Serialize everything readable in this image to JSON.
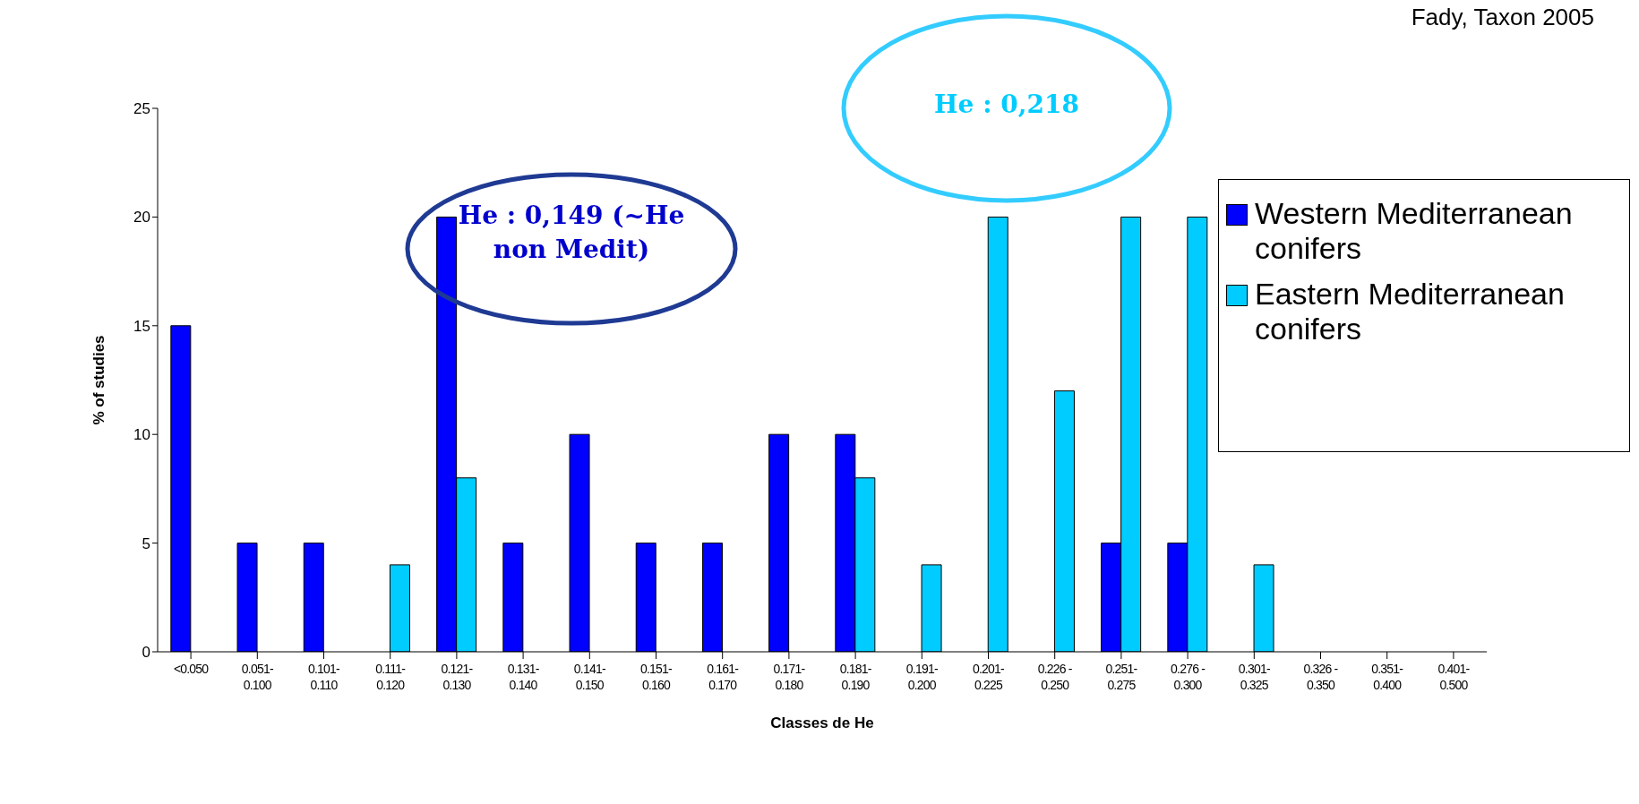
{
  "chart_data": {
    "type": "bar",
    "xlabel": "Classes de He",
    "ylabel": "% of studies",
    "categories": [
      "<0.050",
      "0.051- 0.100",
      "0.101- 0.110",
      "0.111- 0.120",
      "0.121- 0.130",
      "0.131- 0.140",
      "0.141- 0.150",
      "0.151- 0.160",
      "0.161- 0.170",
      "0.171- 0.180",
      "0.181- 0.190",
      "0.191- 0.200",
      "0.201- 0.225",
      "0.226 - 0.250",
      "0.251- 0.275",
      "0.276 - 0.300",
      "0.301- 0.325",
      "0.326 - 0.350",
      "0.351- 0.400",
      "0.401- 0.500"
    ],
    "series": [
      {
        "name": "Western Mediterranean conifers",
        "color": "#0000ff",
        "values": [
          15,
          5,
          5,
          0,
          20,
          5,
          10,
          5,
          5,
          10,
          10,
          0,
          0,
          0,
          5,
          5,
          0,
          0,
          0,
          0
        ]
      },
      {
        "name": "Eastern Mediterranean conifers",
        "color": "#00ccff",
        "values": [
          0,
          0,
          0,
          4,
          8,
          0,
          0,
          0,
          0,
          0,
          8,
          4,
          20,
          12,
          20,
          20,
          4,
          0,
          0,
          0
        ]
      }
    ],
    "ylim": [
      0,
      25
    ],
    "yticks": [
      0,
      5,
      10,
      15,
      20,
      25
    ],
    "grid": false,
    "legend": "right",
    "annotations": [
      "Fady, Taxon 2005",
      "He : 0,149 (~He non Medit)",
      "He : 0,218"
    ]
  }
}
